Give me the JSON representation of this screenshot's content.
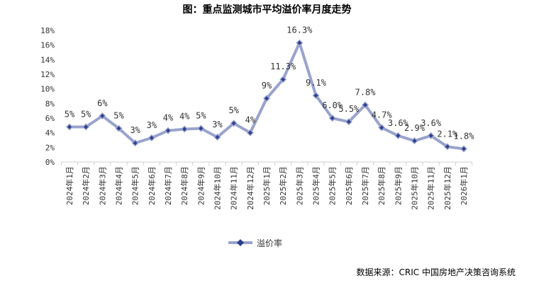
{
  "chart_data": {
    "type": "line",
    "title": "图：重点监测城市平均溢价率月度走势",
    "categories": [
      "2024年1月",
      "2024年2月",
      "2024年3月",
      "2024年4月",
      "2024年5月",
      "2024年6月",
      "2024年7月",
      "2024年8月",
      "2024年9月",
      "2024年10月",
      "2024年11月",
      "2024年12月",
      "2025年1月",
      "2025年2月",
      "2025年3月",
      "2025年4月",
      "2025年5月",
      "2025年6月",
      "2025年7月",
      "2025年8月",
      "2025年9月",
      "2025年10月",
      "2025年11月",
      "2025年12月",
      "2026年1月"
    ],
    "series": [
      {
        "name": "溢价率",
        "values": [
          4.8,
          4.8,
          6.3,
          4.6,
          2.6,
          3.3,
          4.3,
          4.5,
          4.6,
          3.4,
          5.3,
          4.0,
          8.7,
          11.3,
          16.3,
          9.1,
          6.0,
          5.5,
          7.8,
          4.7,
          3.6,
          2.9,
          3.6,
          2.1,
          1.8
        ],
        "labels": [
          "5%",
          "5%",
          "6%",
          "5%",
          "3%",
          "3%",
          "4%",
          "4%",
          "5%",
          "3%",
          "5%",
          "4%",
          "9%",
          "11.3%",
          "16.3%",
          "9.1%",
          "6.0%",
          "5.5%",
          "7.8%",
          "4.7%",
          "3.6%",
          "2.9%",
          "3.6%",
          "2.1%",
          "1.8%"
        ],
        "color": "#99a3cc",
        "marker_color": "#2e3f8f"
      }
    ],
    "yticks": [
      "0%",
      "2%",
      "4%",
      "6%",
      "8%",
      "10%",
      "12%",
      "14%",
      "16%",
      "18%"
    ],
    "ylim": [
      0,
      18
    ],
    "grid": false,
    "legend": "bottom"
  },
  "source": "数据来源：CRIC 中国房地产决策咨询系统"
}
